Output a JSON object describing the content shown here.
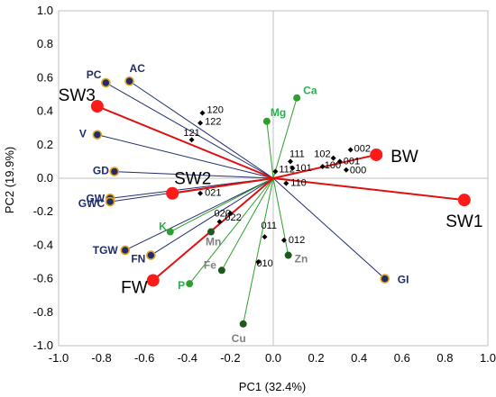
{
  "chart_data": {
    "type": "scatter",
    "xlabel": "PC1 (32.4%)",
    "ylabel": "PC2 (19.9%)",
    "xlim": [
      -1.0,
      1.0
    ],
    "ylim": [
      -1.0,
      1.0
    ],
    "ticks": [
      -1.0,
      -0.8,
      -0.6,
      -0.4,
      -0.2,
      0.0,
      0.2,
      0.4,
      0.6,
      0.8,
      1.0
    ],
    "tick_labels": [
      "-1.0",
      "-0.8",
      "-0.6",
      "-0.4",
      "-0.2",
      "0.0",
      "0.2",
      "0.4",
      "0.6",
      "0.8",
      "1.0"
    ],
    "grid": false,
    "colors": {
      "trait": "#1f2d6b",
      "trait_outline": "#e6a11a",
      "element_green": "#2ca02c",
      "element_dark": "#1e5a1e",
      "element_label_green": "#22b44a",
      "element_label_gray": "#808080",
      "group": "#ff1a1a",
      "group_line": "#e01010",
      "genotype": "#000000",
      "axis_line": "#c0c0c0"
    },
    "traits": [
      {
        "name": "PC",
        "x": -0.78,
        "y": 0.57
      },
      {
        "name": "AC",
        "x": -0.67,
        "y": 0.58
      },
      {
        "name": "V",
        "x": -0.82,
        "y": 0.26
      },
      {
        "name": "GD",
        "x": -0.74,
        "y": 0.04
      },
      {
        "name": "GW",
        "x": -0.76,
        "y": -0.12
      },
      {
        "name": "GWC",
        "x": -0.76,
        "y": -0.14
      },
      {
        "name": "TGW",
        "x": -0.69,
        "y": -0.43
      },
      {
        "name": "FN",
        "x": -0.57,
        "y": -0.46
      },
      {
        "name": "GI",
        "x": 0.52,
        "y": -0.6
      }
    ],
    "elements": [
      {
        "name": "Ca",
        "x": 0.11,
        "y": 0.48,
        "fill": "green",
        "label": "green"
      },
      {
        "name": "Mg",
        "x": -0.03,
        "y": 0.34,
        "fill": "green",
        "label": "green"
      },
      {
        "name": "K",
        "x": -0.48,
        "y": -0.32,
        "fill": "green",
        "label": "green"
      },
      {
        "name": "P",
        "x": -0.39,
        "y": -0.63,
        "fill": "green",
        "label": "green"
      },
      {
        "name": "Mn",
        "x": -0.29,
        "y": -0.32,
        "fill": "dark",
        "label": "gray"
      },
      {
        "name": "Fe",
        "x": -0.24,
        "y": -0.55,
        "fill": "dark",
        "label": "gray"
      },
      {
        "name": "Cu",
        "x": -0.14,
        "y": -0.87,
        "fill": "dark",
        "label": "gray"
      },
      {
        "name": "Zn",
        "x": 0.07,
        "y": -0.46,
        "fill": "dark",
        "label": "gray"
      }
    ],
    "groups": [
      {
        "name": "SW3",
        "x": -0.82,
        "y": 0.43
      },
      {
        "name": "SW2",
        "x": -0.47,
        "y": -0.09
      },
      {
        "name": "FW",
        "x": -0.56,
        "y": -0.61
      },
      {
        "name": "BW",
        "x": 0.48,
        "y": 0.14
      },
      {
        "name": "SW1",
        "x": 0.89,
        "y": -0.13
      }
    ],
    "genotypes": [
      {
        "name": "120",
        "x": -0.33,
        "y": 0.39
      },
      {
        "name": "122",
        "x": -0.34,
        "y": 0.33
      },
      {
        "name": "121",
        "x": -0.38,
        "y": 0.23
      },
      {
        "name": "111",
        "x": 0.08,
        "y": 0.1
      },
      {
        "name": "101",
        "x": 0.09,
        "y": 0.06
      },
      {
        "name": "112",
        "x": 0.01,
        "y": 0.04
      },
      {
        "name": "110",
        "x": 0.06,
        "y": -0.03
      },
      {
        "name": "102",
        "x": 0.28,
        "y": 0.12
      },
      {
        "name": "002",
        "x": 0.36,
        "y": 0.17
      },
      {
        "name": "100",
        "x": 0.23,
        "y": 0.07
      },
      {
        "name": "001",
        "x": 0.31,
        "y": 0.1
      },
      {
        "name": "000",
        "x": 0.34,
        "y": 0.05
      },
      {
        "name": "021",
        "x": -0.34,
        "y": -0.09
      },
      {
        "name": "020",
        "x": -0.25,
        "y": -0.26
      },
      {
        "name": "022",
        "x": -0.2,
        "y": -0.21
      },
      {
        "name": "011",
        "x": -0.04,
        "y": -0.35
      },
      {
        "name": "012",
        "x": 0.05,
        "y": -0.37
      },
      {
        "name": "010",
        "x": -0.07,
        "y": -0.5
      }
    ]
  }
}
